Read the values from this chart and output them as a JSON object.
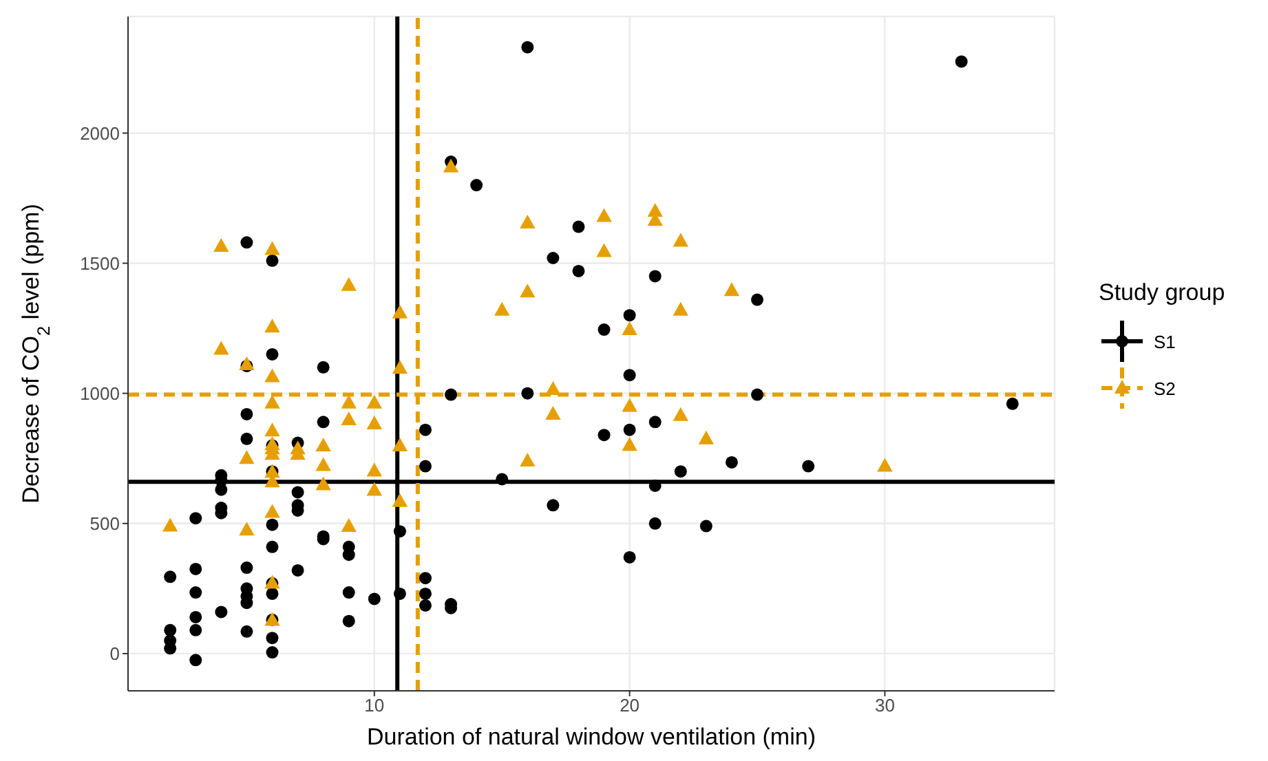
{
  "chart_data": {
    "type": "scatter",
    "xlabel": "Duration of natural window ventilation (min)",
    "ylabel": "Decrease of CO$_{2}$ level (ppm)",
    "legend_title": "Study group",
    "legend": "right",
    "grid": true,
    "xlim": [
      0.35,
      36.65
    ],
    "xticks": [
      10,
      20,
      30
    ],
    "ylim": [
      -143,
      2448
    ],
    "yticks": [
      0,
      500,
      1000,
      1500,
      2000
    ],
    "series": [
      {
        "name": "S1",
        "color": "#000000",
        "marker": "circle",
        "x": [
          2,
          2,
          2,
          2,
          3,
          3,
          3,
          3,
          3,
          3,
          4,
          4,
          4,
          4,
          4,
          4,
          5,
          5,
          5,
          5,
          5,
          5,
          5,
          5,
          5,
          6,
          6,
          6,
          6,
          6,
          6,
          6,
          6,
          6,
          6,
          6,
          7,
          7,
          7,
          7,
          7,
          8,
          8,
          8,
          8,
          9,
          9,
          9,
          9,
          10,
          11,
          11,
          12,
          12,
          12,
          12,
          12,
          13,
          13,
          13,
          13,
          14,
          15,
          16,
          16,
          17,
          17,
          18,
          18,
          19,
          19,
          20,
          20,
          20,
          20,
          21,
          21,
          21,
          21,
          22,
          23,
          24,
          25,
          25,
          27,
          33,
          35
        ],
        "values": [
          295,
          90,
          50,
          20,
          520,
          325,
          235,
          140,
          90,
          -25,
          685,
          665,
          630,
          560,
          540,
          160,
          1580,
          1105,
          920,
          825,
          330,
          250,
          220,
          195,
          85,
          1510,
          1150,
          800,
          700,
          495,
          410,
          270,
          230,
          130,
          60,
          5,
          810,
          620,
          570,
          550,
          320,
          1100,
          890,
          450,
          440,
          410,
          380,
          235,
          125,
          210,
          470,
          230,
          860,
          720,
          290,
          230,
          185,
          1890,
          995,
          190,
          175,
          1800,
          670,
          2330,
          1000,
          1520,
          570,
          1640,
          1470,
          1245,
          840,
          1300,
          1070,
          860,
          370,
          1450,
          890,
          645,
          500,
          700,
          490,
          735,
          1360,
          995,
          720,
          2275,
          960
        ]
      },
      {
        "name": "S2",
        "color": "#e69f00",
        "marker": "triangle",
        "x": [
          2,
          4,
          4,
          5,
          5,
          5,
          6,
          6,
          6,
          6,
          6,
          6,
          6,
          6,
          6,
          6,
          6,
          6,
          6,
          7,
          7,
          8,
          8,
          8,
          9,
          9,
          9,
          9,
          10,
          10,
          10,
          10,
          11,
          11,
          11,
          11,
          13,
          15,
          16,
          16,
          16,
          17,
          17,
          19,
          19,
          20,
          20,
          20,
          21,
          21,
          22,
          22,
          22,
          23,
          24,
          30
        ],
        "values": [
          490,
          1565,
          1170,
          1110,
          750,
          475,
          1553,
          1255,
          1064,
          963,
          856,
          803,
          787,
          766,
          697,
          660,
          543,
          271,
          128,
          787,
          766,
          798,
          723,
          649,
          1415,
          963,
          899,
          489,
          963,
          883,
          702,
          628,
          1309,
          1096,
          798,
          585,
          1870,
          1320,
          1655,
          1390,
          740,
          1015,
          920,
          1680,
          1545,
          1245,
          950,
          800,
          1700,
          1665,
          1585,
          1320,
          915,
          825,
          1395,
          720
        ]
      }
    ],
    "ref_lines": [
      {
        "axis": "x",
        "value": 10.9,
        "color": "#000000",
        "line_style": "solid"
      },
      {
        "axis": "y",
        "value": 660,
        "color": "#000000",
        "line_style": "solid"
      },
      {
        "axis": "x",
        "value": 11.7,
        "color": "#e69f00",
        "line_style": "dashed"
      },
      {
        "axis": "y",
        "value": 995,
        "color": "#e69f00",
        "line_style": "dashed"
      }
    ]
  }
}
